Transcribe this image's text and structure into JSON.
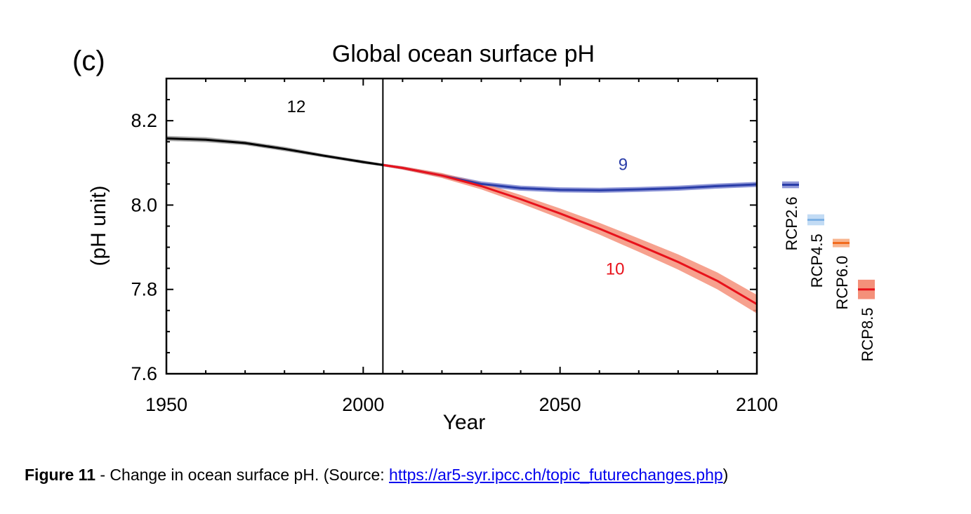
{
  "chart_data": {
    "type": "line",
    "panel_label": "(c)",
    "title": "Global ocean surface pH",
    "xlabel": "Year",
    "ylabel": "(pH unit)",
    "xlim": [
      1950,
      2100
    ],
    "ylim": [
      7.6,
      8.3
    ],
    "xticks": [
      1950,
      2000,
      2050,
      2100
    ],
    "yticks": [
      7.6,
      7.8,
      8.0,
      8.2
    ],
    "xtick_labels": [
      "1950",
      "2000",
      "2050",
      "2100"
    ],
    "ytick_labels": [
      "7.6",
      "7.8",
      "8.0",
      "8.2"
    ],
    "grid": false,
    "vertical_line_x": 2005,
    "series": [
      {
        "key": "historical",
        "color": "#000000",
        "band_color": "#9a9a9a",
        "annotation": "12",
        "x": [
          1950,
          1960,
          1970,
          1980,
          1990,
          2000,
          2005
        ],
        "y": [
          8.158,
          8.155,
          8.147,
          8.133,
          8.117,
          8.102,
          8.095
        ],
        "band": [
          0.006,
          0.006,
          0.005,
          0.005,
          0.004,
          0.004,
          0.003
        ]
      },
      {
        "key": "rcp26",
        "color": "#2a3da8",
        "band_color": "#7a84d0",
        "annotation": "9",
        "x": [
          2005,
          2010,
          2020,
          2030,
          2040,
          2050,
          2060,
          2070,
          2080,
          2090,
          2100
        ],
        "y": [
          8.095,
          8.088,
          8.07,
          8.05,
          8.04,
          8.036,
          8.035,
          8.037,
          8.04,
          8.045,
          8.049
        ],
        "band": [
          0.003,
          0.004,
          0.005,
          0.006,
          0.006,
          0.006,
          0.006,
          0.006,
          0.006,
          0.006,
          0.006
        ]
      },
      {
        "key": "rcp85",
        "color": "#e8121b",
        "band_color": "#f4907a",
        "annotation": "10",
        "x": [
          2005,
          2010,
          2020,
          2030,
          2040,
          2050,
          2060,
          2070,
          2080,
          2090,
          2100
        ],
        "y": [
          8.095,
          8.088,
          8.07,
          8.045,
          8.014,
          7.98,
          7.944,
          7.905,
          7.865,
          7.82,
          7.765
        ],
        "band": [
          0.003,
          0.004,
          0.006,
          0.008,
          0.01,
          0.012,
          0.014,
          0.016,
          0.018,
          0.02,
          0.022
        ]
      }
    ],
    "legend": [
      {
        "label": "RCP2.6",
        "color": "#2a3da8",
        "band_color": "#8f97d8",
        "mean": 8.048,
        "range": [
          8.04,
          8.056
        ]
      },
      {
        "label": "RCP4.5",
        "color": "#7fb2e5",
        "band_color": "#c2dbf4",
        "mean": 7.965,
        "range": [
          7.952,
          7.978
        ]
      },
      {
        "label": "RCP6.0",
        "color": "#f26b1d",
        "band_color": "#f8b58f",
        "mean": 7.91,
        "range": [
          7.9,
          7.92
        ]
      },
      {
        "label": "RCP8.5",
        "color": "#e8121b",
        "band_color": "#f4907a",
        "mean": 7.8,
        "range": [
          7.777,
          7.823
        ]
      }
    ],
    "legend_placement": "right"
  },
  "caption": {
    "label": "Figure 11",
    "text": " - Change in ocean surface pH. (Source: ",
    "link": "https://ar5-syr.ipcc.ch/topic_futurechanges.php",
    "close": ")"
  }
}
